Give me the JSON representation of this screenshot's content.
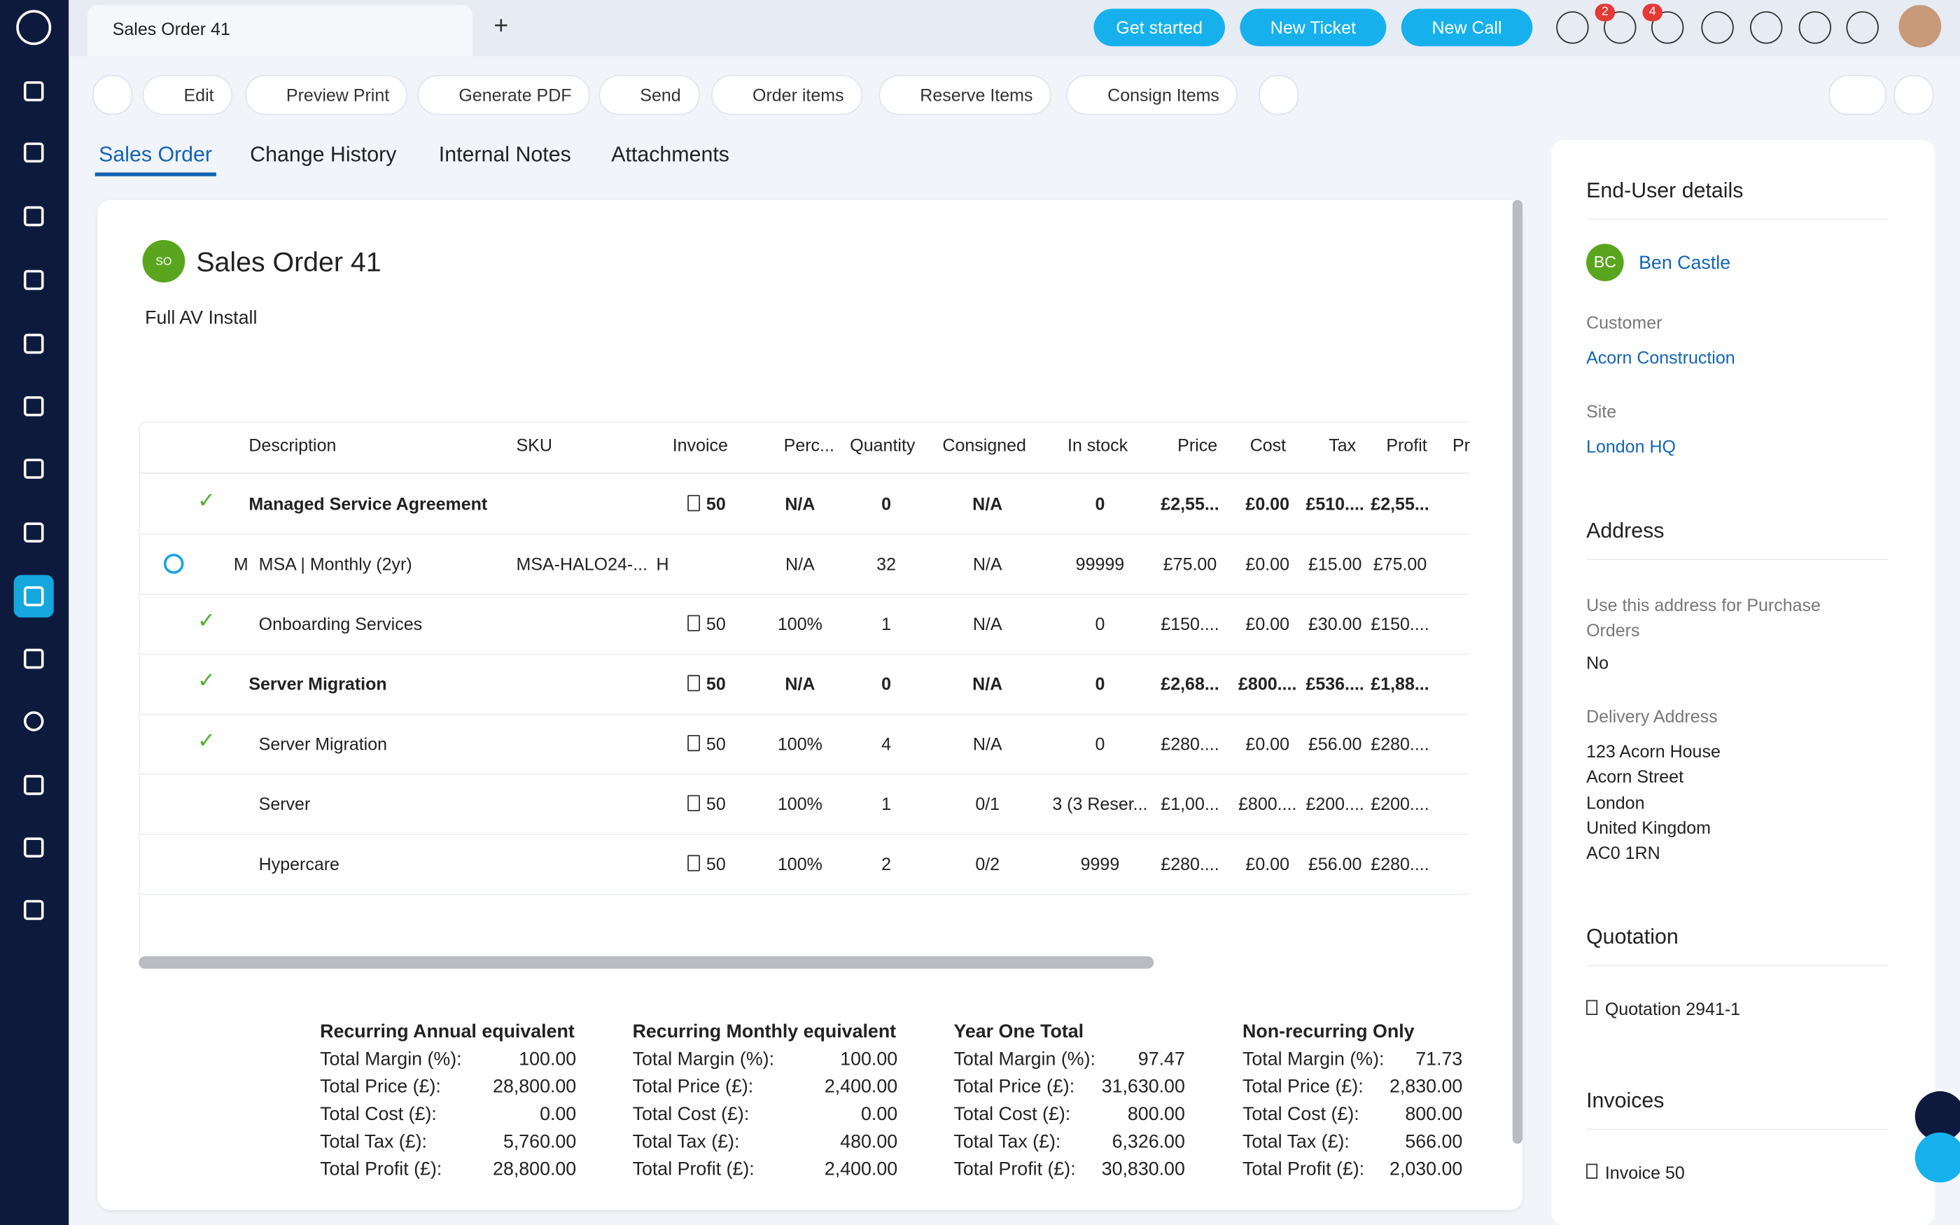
{
  "top_bar": {
    "tab": "Sales Order 41",
    "buttons": [
      "Get started",
      "New Ticket",
      "New Call"
    ],
    "badges": [
      2,
      4
    ]
  },
  "toolbar": [
    "Edit",
    "Preview Print",
    "Generate PDF",
    "Send",
    "Order items",
    "Reserve Items",
    "Consign Items"
  ],
  "tabs": [
    "Sales Order",
    "Change History",
    "Internal Notes",
    "Attachments"
  ],
  "order": {
    "icon": "SO",
    "title": "Sales Order 41",
    "description": "Full AV Install"
  },
  "table": {
    "columns": [
      "Description",
      "SKU",
      "Invoice",
      "Perc...",
      "Quantity",
      "Consigned",
      "In stock",
      "Price",
      "Cost",
      "Tax",
      "Profit",
      "Pr"
    ],
    "rows": [
      {
        "icon": "check",
        "bold": true,
        "description": "Managed Service Agreement",
        "invoice": "50",
        "perc": "N/A",
        "quantity": "0",
        "consigned": "N/A",
        "in_stock": "0",
        "price": "£2,55...",
        "cost": "£0.00",
        "tax": "£510....",
        "profit": "£2,55..."
      },
      {
        "icon": "sync",
        "prefix": "M",
        "description": "MSA | Monthly (2yr)",
        "sku": "MSA-HALO24-...",
        "sku_extra": "H",
        "perc": "N/A",
        "quantity": "32",
        "consigned": "N/A",
        "in_stock": "99999",
        "price": "£75.00",
        "cost": "£0.00",
        "tax": "£15.00",
        "profit": "£75.00"
      },
      {
        "icon": "check",
        "description": "Onboarding Services",
        "invoice": "50",
        "perc": "100%",
        "quantity": "1",
        "consigned": "N/A",
        "in_stock": "0",
        "price": "£150....",
        "cost": "£0.00",
        "tax": "£30.00",
        "profit": "£150...."
      },
      {
        "icon": "check",
        "bold": true,
        "description": "Server Migration",
        "invoice": "50",
        "perc": "N/A",
        "quantity": "0",
        "consigned": "N/A",
        "in_stock": "0",
        "price": "£2,68...",
        "cost": "£800....",
        "tax": "£536....",
        "profit": "£1,88..."
      },
      {
        "icon": "check",
        "description": "Server Migration",
        "invoice": "50",
        "perc": "100%",
        "quantity": "4",
        "consigned": "N/A",
        "in_stock": "0",
        "price": "£280....",
        "cost": "£0.00",
        "tax": "£56.00",
        "profit": "£280...."
      },
      {
        "description": "Server",
        "invoice": "50",
        "perc": "100%",
        "quantity": "1",
        "consigned": "0/1",
        "in_stock": "3 (3 Reser...",
        "price": "£1,00...",
        "cost": "£800....",
        "tax": "£200....",
        "profit": "£200...."
      },
      {
        "description": "Hypercare",
        "invoice": "50",
        "perc": "100%",
        "quantity": "2",
        "consigned": "0/2",
        "in_stock": "9999",
        "price": "£280....",
        "cost": "£0.00",
        "tax": "£56.00",
        "profit": "£280...."
      }
    ]
  },
  "summary": [
    {
      "title": "Recurring Annual equivalent",
      "rows": [
        [
          "Total Margin (%):",
          "100.00"
        ],
        [
          "Total Price (£):",
          "28,800.00"
        ],
        [
          "Total Cost (£):",
          "0.00"
        ],
        [
          "Total Tax (£):",
          "5,760.00"
        ],
        [
          "Total Profit (£):",
          "28,800.00"
        ]
      ]
    },
    {
      "title": "Recurring Monthly equivalent",
      "rows": [
        [
          "Total Margin (%):",
          "100.00"
        ],
        [
          "Total Price (£):",
          "2,400.00"
        ],
        [
          "Total Cost (£):",
          "0.00"
        ],
        [
          "Total Tax (£):",
          "480.00"
        ],
        [
          "Total Profit (£):",
          "2,400.00"
        ]
      ]
    },
    {
      "title": "Year One Total",
      "rows": [
        [
          "Total Margin (%):",
          "97.47"
        ],
        [
          "Total Price (£):",
          "31,630.00"
        ],
        [
          "Total Cost (£):",
          "800.00"
        ],
        [
          "Total Tax (£):",
          "6,326.00"
        ],
        [
          "Total Profit (£):",
          "30,830.00"
        ]
      ]
    },
    {
      "title": "Non-recurring Only",
      "rows": [
        [
          "Total Margin (%):",
          "71.73"
        ],
        [
          "Total Price (£):",
          "2,830.00"
        ],
        [
          "Total Cost (£):",
          "800.00"
        ],
        [
          "Total Tax (£):",
          "566.00"
        ],
        [
          "Total Profit (£):",
          "2,030.00"
        ]
      ]
    }
  ],
  "sidebar": {
    "heading": "End-User details",
    "avatar": "BC",
    "user": "Ben Castle",
    "customer_label": "Customer",
    "customer": "Acorn Construction",
    "site_label": "Site",
    "site": "London HQ",
    "address_heading": "Address",
    "purchase_label": "Use this address for Purchase Orders",
    "purchase_value": "No",
    "delivery_label": "Delivery Address",
    "delivery_lines": [
      "123 Acorn House",
      "Acorn Street",
      "London",
      "United Kingdom",
      "AC0 1RN"
    ],
    "quotation_heading": "Quotation",
    "quotation": "Quotation 2941-1",
    "invoices_heading": "Invoices",
    "invoice": "Invoice 50"
  }
}
